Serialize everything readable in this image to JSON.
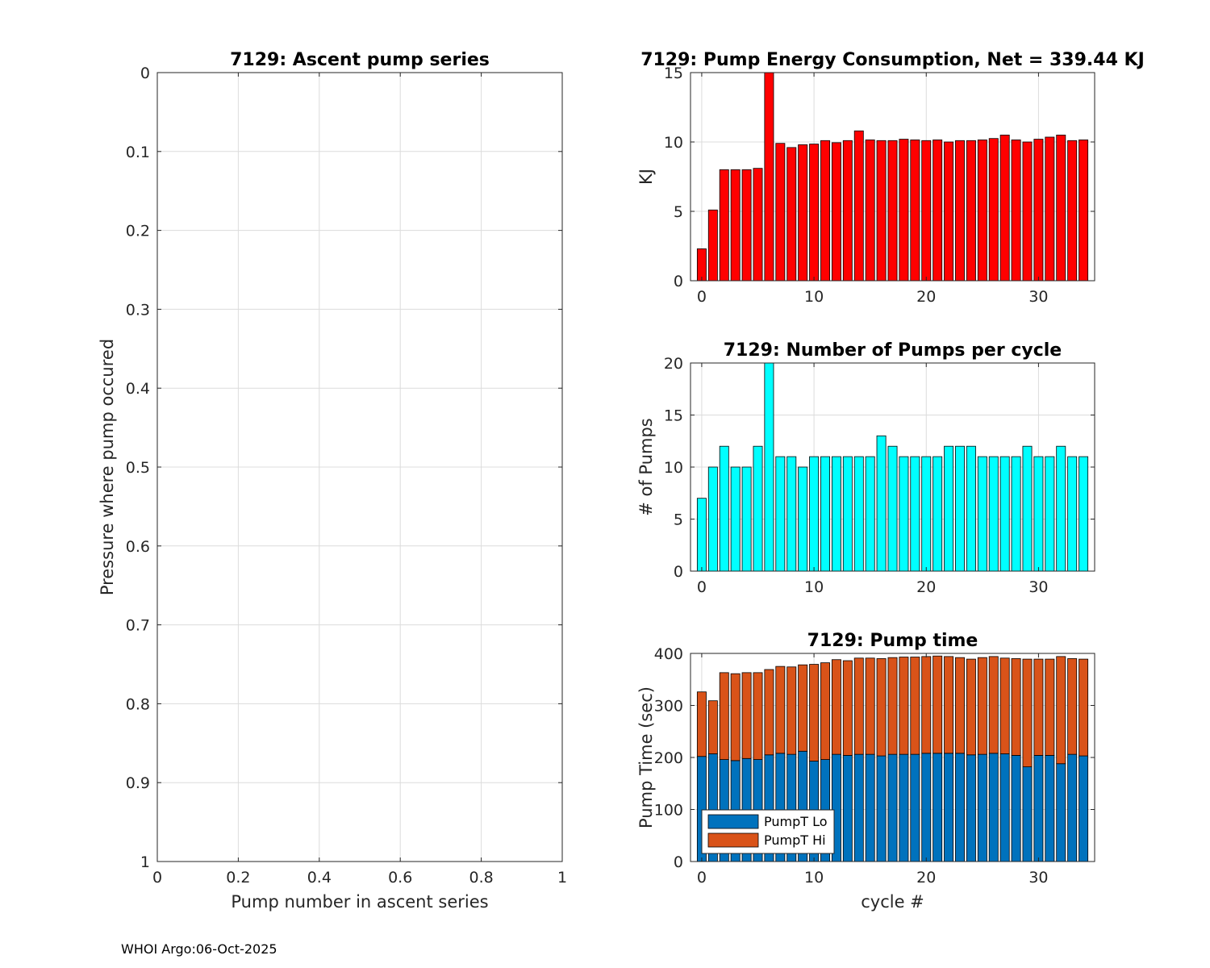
{
  "footer": "WHOI Argo:06-Oct-2025",
  "chart_data": [
    {
      "id": "ascent",
      "type": "scatter",
      "title": "7129: Ascent pump series",
      "xlabel": "Pump number in ascent series",
      "ylabel": "Pressure where pump occured",
      "xlim": [
        0,
        1
      ],
      "ylim": [
        0,
        1
      ],
      "y_reversed": true,
      "grid": true,
      "xticks": [
        0,
        0.2,
        0.4,
        0.6,
        0.8,
        1
      ],
      "xtick_labels": [
        "0",
        "0.2",
        "0.4",
        "0.6",
        "0.8",
        "1"
      ],
      "yticks": [
        0,
        0.1,
        0.2,
        0.3,
        0.4,
        0.5,
        0.6,
        0.7,
        0.8,
        0.9,
        1
      ],
      "ytick_labels": [
        "0",
        "0.1",
        "0.2",
        "0.3",
        "0.4",
        "0.5",
        "0.6",
        "0.7",
        "0.8",
        "0.9",
        "1"
      ],
      "series": []
    },
    {
      "id": "energy",
      "type": "bar",
      "title": "7129: Pump Energy Consumption,  Net = 339.44 KJ",
      "xlabel": "",
      "ylabel": "KJ",
      "xlim": [
        -1,
        35
      ],
      "ylim": [
        0,
        15
      ],
      "grid": true,
      "color": "#ff0000",
      "xticks": [
        0,
        10,
        20,
        30
      ],
      "xtick_labels": [
        "0",
        "10",
        "20",
        "30"
      ],
      "yticks": [
        0,
        5,
        10,
        15
      ],
      "ytick_labels": [
        "0",
        "5",
        "10",
        "15"
      ],
      "x": [
        0,
        1,
        2,
        3,
        4,
        5,
        6,
        7,
        8,
        9,
        10,
        11,
        12,
        13,
        14,
        15,
        16,
        17,
        18,
        19,
        20,
        21,
        22,
        23,
        24,
        25,
        26,
        27,
        28,
        29,
        30,
        31,
        32,
        33,
        34
      ],
      "values": [
        2.3,
        5.1,
        8.0,
        8.0,
        8.0,
        8.1,
        15.1,
        9.9,
        9.6,
        9.8,
        9.85,
        10.1,
        9.95,
        10.1,
        10.8,
        10.15,
        10.1,
        10.1,
        10.2,
        10.15,
        10.1,
        10.15,
        10.0,
        10.1,
        10.1,
        10.15,
        10.25,
        10.5,
        10.15,
        10.0,
        10.2,
        10.35,
        10.5,
        10.1,
        10.15
      ]
    },
    {
      "id": "pumps",
      "type": "bar",
      "title": "7129: Number of Pumps per cycle",
      "xlabel": "",
      "ylabel": "# of Pumps",
      "xlim": [
        -1,
        35
      ],
      "ylim": [
        0,
        20
      ],
      "grid": true,
      "color": "#00ffff",
      "xticks": [
        0,
        10,
        20,
        30
      ],
      "xtick_labels": [
        "0",
        "10",
        "20",
        "30"
      ],
      "yticks": [
        0,
        5,
        10,
        15,
        20
      ],
      "ytick_labels": [
        "0",
        "5",
        "10",
        "15",
        "20"
      ],
      "x": [
        0,
        1,
        2,
        3,
        4,
        5,
        6,
        7,
        8,
        9,
        10,
        11,
        12,
        13,
        14,
        15,
        16,
        17,
        18,
        19,
        20,
        21,
        22,
        23,
        24,
        25,
        26,
        27,
        28,
        29,
        30,
        31,
        32,
        33,
        34
      ],
      "values": [
        7,
        10,
        12,
        10,
        10,
        12,
        20,
        11,
        11,
        10,
        11,
        11,
        11,
        11,
        11,
        11,
        13,
        12,
        11,
        11,
        11,
        11,
        12,
        12,
        12,
        11,
        11,
        11,
        11,
        12,
        11,
        11,
        12,
        11,
        11
      ]
    },
    {
      "id": "pumptime",
      "type": "bar",
      "stacked": true,
      "title": "7129: Pump time",
      "xlabel": "cycle #",
      "ylabel": "Pump Time (sec)",
      "xlim": [
        -1,
        35
      ],
      "ylim": [
        0,
        400
      ],
      "grid": true,
      "legend_position": "bottom-left",
      "xticks": [
        0,
        10,
        20,
        30
      ],
      "xtick_labels": [
        "0",
        "10",
        "20",
        "30"
      ],
      "yticks": [
        0,
        100,
        200,
        300,
        400
      ],
      "ytick_labels": [
        "0",
        "100",
        "200",
        "300",
        "400"
      ],
      "x": [
        0,
        1,
        2,
        3,
        4,
        5,
        6,
        7,
        8,
        9,
        10,
        11,
        12,
        13,
        14,
        15,
        16,
        17,
        18,
        19,
        20,
        21,
        22,
        23,
        24,
        25,
        26,
        27,
        28,
        29,
        30,
        31,
        32,
        33,
        34
      ],
      "series": [
        {
          "name": "PumpT Lo",
          "color": "#0072bd",
          "values": [
            202,
            207,
            196,
            194,
            198,
            196,
            205,
            208,
            206,
            212,
            193,
            196,
            206,
            204,
            206,
            206,
            203,
            206,
            206,
            206,
            208,
            208,
            208,
            208,
            205,
            206,
            208,
            207,
            204,
            182,
            204,
            204,
            188,
            206,
            203
          ]
        },
        {
          "name": "PumpT Hi",
          "color": "#d95319",
          "values": [
            124,
            102,
            167,
            167,
            165,
            167,
            164,
            167,
            168,
            166,
            186,
            186,
            182,
            182,
            185,
            185,
            187,
            186,
            187,
            187,
            186,
            187,
            186,
            184,
            184,
            186,
            186,
            184,
            186,
            207,
            185,
            185,
            206,
            184,
            186
          ]
        }
      ]
    }
  ]
}
